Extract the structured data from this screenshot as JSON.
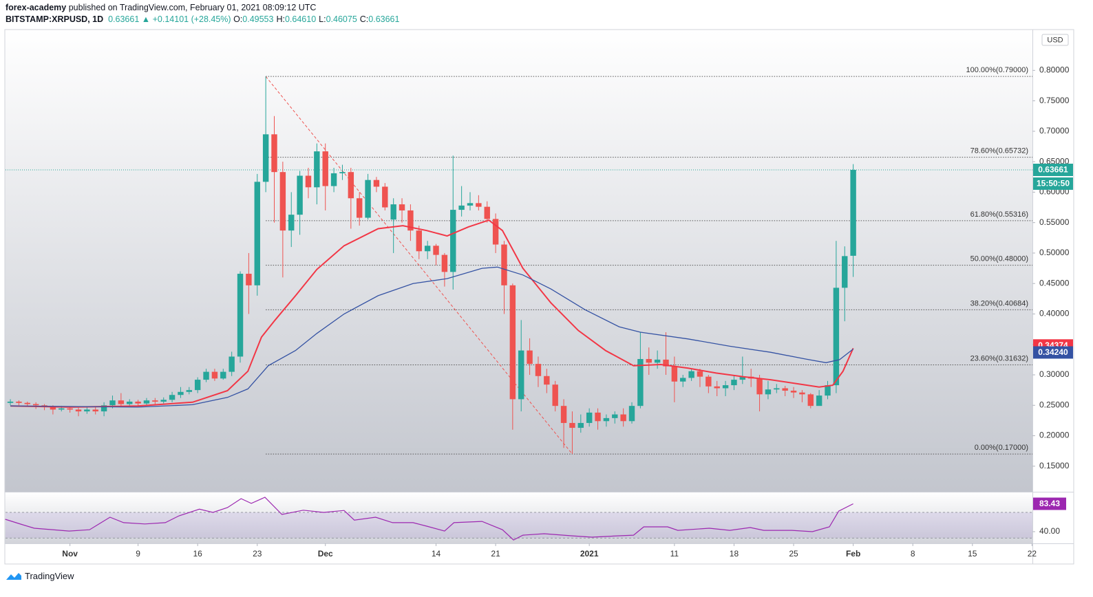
{
  "header": {
    "author": "forex-academy",
    "published": "published on TradingView.com, February 01, 2021 08:09:12 UTC",
    "symbol": "BITSTAMP:XRPUSD, 1D",
    "last": "0.63661",
    "change": "▲ +0.14101 (+28.45%)",
    "ohlc": [
      {
        "key": "O:",
        "value": "0.49553"
      },
      {
        "key": "H:",
        "value": "0.64610"
      },
      {
        "key": "L:",
        "value": "0.46075"
      },
      {
        "key": "C:",
        "value": "0.63661"
      }
    ]
  },
  "footer": {
    "brand": "TradingView"
  },
  "chart_data": [
    {
      "type": "candlestick",
      "currency": "USD",
      "grid": false,
      "up_color": "#26a69a",
      "down_color": "#ef5350",
      "xlim": [
        -0.57,
        120.05
      ],
      "ylim": [
        0.108,
        0.867
      ],
      "xticks": [
        {
          "value": 7,
          "label": "Nov"
        },
        {
          "value": 15,
          "label": "9"
        },
        {
          "value": 22,
          "label": "16"
        },
        {
          "value": 29,
          "label": "23"
        },
        {
          "value": 37,
          "label": "Dec"
        },
        {
          "value": 50,
          "label": "14"
        },
        {
          "value": 57,
          "label": "21"
        },
        {
          "value": 68,
          "label": "2021"
        },
        {
          "value": 78,
          "label": "11"
        },
        {
          "value": 85,
          "label": "18"
        },
        {
          "value": 92,
          "label": "25"
        },
        {
          "value": 99,
          "label": "Feb"
        },
        {
          "value": 106,
          "label": "8"
        },
        {
          "value": 113,
          "label": "15"
        },
        {
          "value": 120,
          "label": "22"
        }
      ],
      "yticks": [
        {
          "value": 0.15,
          "label": "0.15000"
        },
        {
          "value": 0.2,
          "label": "0.20000"
        },
        {
          "value": 0.25,
          "label": "0.25000"
        },
        {
          "value": 0.3,
          "label": "0.30000"
        },
        {
          "value": 0.35,
          "label": "0.35000"
        },
        {
          "value": 0.4,
          "label": "0.40000"
        },
        {
          "value": 0.45,
          "label": "0.45000"
        },
        {
          "value": 0.5,
          "label": "0.50000"
        },
        {
          "value": 0.55,
          "label": "0.55000"
        },
        {
          "value": 0.6,
          "label": "0.60000"
        },
        {
          "value": 0.65,
          "label": "0.65000"
        },
        {
          "value": 0.7,
          "label": "0.70000"
        },
        {
          "value": 0.75,
          "label": "0.75000"
        },
        {
          "value": 0.8,
          "label": "0.80000"
        }
      ],
      "open": [
        0.254,
        0.256,
        0.254,
        0.252,
        0.25,
        0.247,
        0.243,
        0.245,
        0.243,
        0.24,
        0.243,
        0.24,
        0.25,
        0.258,
        0.252,
        0.256,
        0.253,
        0.258,
        0.256,
        0.259,
        0.267,
        0.272,
        0.275,
        0.292,
        0.305,
        0.294,
        0.305,
        0.33,
        0.466,
        0.447,
        0.617,
        0.695,
        0.633,
        0.537,
        0.563,
        0.627,
        0.608,
        0.667,
        0.61,
        0.631,
        0.633,
        0.59,
        0.558,
        0.62,
        0.609,
        0.555,
        0.58,
        0.57,
        0.537,
        0.503,
        0.512,
        0.497,
        0.469,
        0.571,
        0.578,
        0.582,
        0.576,
        0.556,
        0.514,
        0.447,
        0.26,
        0.34,
        0.318,
        0.298,
        0.284,
        0.249,
        0.221,
        0.213,
        0.221,
        0.238,
        0.224,
        0.229,
        0.235,
        0.224,
        0.249,
        0.326,
        0.32,
        0.325,
        0.314,
        0.289,
        0.295,
        0.306,
        0.297,
        0.281,
        0.278,
        0.283,
        0.292,
        0.297,
        0.294,
        0.268,
        0.276,
        0.278,
        0.274,
        0.271,
        0.268,
        0.249,
        0.266,
        0.283,
        0.443,
        0.49553
      ],
      "high": [
        0.26,
        0.258,
        0.256,
        0.255,
        0.252,
        0.25,
        0.249,
        0.248,
        0.246,
        0.248,
        0.247,
        0.255,
        0.266,
        0.27,
        0.26,
        0.259,
        0.262,
        0.262,
        0.263,
        0.272,
        0.28,
        0.28,
        0.296,
        0.31,
        0.31,
        0.31,
        0.338,
        0.47,
        0.5,
        0.63,
        0.79,
        0.725,
        0.65,
        0.6,
        0.635,
        0.64,
        0.68,
        0.68,
        0.64,
        0.645,
        0.64,
        0.6,
        0.63,
        0.625,
        0.615,
        0.59,
        0.59,
        0.58,
        0.545,
        0.52,
        0.515,
        0.5,
        0.66,
        0.61,
        0.6,
        0.595,
        0.585,
        0.565,
        0.52,
        0.45,
        0.39,
        0.36,
        0.33,
        0.31,
        0.29,
        0.26,
        0.24,
        0.235,
        0.245,
        0.245,
        0.235,
        0.24,
        0.245,
        0.255,
        0.37,
        0.345,
        0.34,
        0.37,
        0.33,
        0.3,
        0.31,
        0.31,
        0.3,
        0.29,
        0.29,
        0.3,
        0.33,
        0.31,
        0.3,
        0.29,
        0.285,
        0.282,
        0.28,
        0.275,
        0.27,
        0.275,
        0.29,
        0.52,
        0.511,
        0.6461
      ],
      "low": [
        0.25,
        0.25,
        0.248,
        0.244,
        0.242,
        0.235,
        0.24,
        0.238,
        0.232,
        0.236,
        0.235,
        0.232,
        0.245,
        0.248,
        0.248,
        0.248,
        0.25,
        0.252,
        0.253,
        0.255,
        0.262,
        0.268,
        0.27,
        0.288,
        0.29,
        0.292,
        0.298,
        0.32,
        0.4,
        0.43,
        0.6,
        0.55,
        0.46,
        0.51,
        0.53,
        0.59,
        0.58,
        0.57,
        0.6,
        0.62,
        0.54,
        0.545,
        0.555,
        0.6,
        0.57,
        0.5,
        0.55,
        0.52,
        0.49,
        0.49,
        0.48,
        0.445,
        0.44,
        0.56,
        0.57,
        0.57,
        0.55,
        0.5,
        0.4,
        0.21,
        0.24,
        0.3,
        0.28,
        0.27,
        0.24,
        0.18,
        0.17,
        0.205,
        0.215,
        0.21,
        0.215,
        0.22,
        0.215,
        0.22,
        0.245,
        0.3,
        0.31,
        0.3,
        0.255,
        0.28,
        0.29,
        0.28,
        0.27,
        0.265,
        0.265,
        0.275,
        0.285,
        0.28,
        0.24,
        0.26,
        0.27,
        0.265,
        0.262,
        0.255,
        0.245,
        0.25,
        0.26,
        0.27,
        0.388,
        0.46075
      ],
      "close": [
        0.256,
        0.254,
        0.252,
        0.25,
        0.247,
        0.243,
        0.245,
        0.243,
        0.24,
        0.243,
        0.24,
        0.25,
        0.258,
        0.252,
        0.256,
        0.253,
        0.258,
        0.256,
        0.259,
        0.267,
        0.272,
        0.275,
        0.292,
        0.305,
        0.294,
        0.305,
        0.33,
        0.466,
        0.447,
        0.617,
        0.695,
        0.633,
        0.537,
        0.563,
        0.627,
        0.608,
        0.667,
        0.61,
        0.631,
        0.633,
        0.59,
        0.558,
        0.62,
        0.609,
        0.575,
        0.58,
        0.57,
        0.537,
        0.503,
        0.512,
        0.497,
        0.469,
        0.571,
        0.578,
        0.582,
        0.576,
        0.556,
        0.514,
        0.447,
        0.26,
        0.34,
        0.318,
        0.298,
        0.284,
        0.249,
        0.221,
        0.213,
        0.221,
        0.238,
        0.224,
        0.229,
        0.235,
        0.224,
        0.249,
        0.326,
        0.32,
        0.325,
        0.314,
        0.289,
        0.295,
        0.306,
        0.297,
        0.281,
        0.278,
        0.283,
        0.292,
        0.297,
        0.294,
        0.268,
        0.276,
        0.278,
        0.274,
        0.271,
        0.268,
        0.249,
        0.266,
        0.283,
        0.443,
        0.495,
        0.63661
      ],
      "countdown": "15:50:50",
      "series": [
        {
          "color": "#f23645",
          "badge": "0.34374",
          "x": [
            0,
            7,
            15,
            21.4,
            25.5,
            27.9,
            29.5,
            31.1,
            33.5,
            36,
            39.2,
            43.2,
            46.1,
            48.9,
            51.3,
            53.8,
            56.2,
            57.8,
            60.2,
            63.5,
            66.7,
            69.9,
            73.2,
            76.4,
            79.6,
            82.9,
            86.1,
            89.3,
            92.6,
            95,
            96.6,
            97.8,
            99
          ],
          "values": [
            0.249,
            0.247,
            0.249,
            0.255,
            0.274,
            0.306,
            0.362,
            0.39,
            0.43,
            0.473,
            0.512,
            0.54,
            0.545,
            0.537,
            0.528,
            0.543,
            0.554,
            0.537,
            0.475,
            0.418,
            0.373,
            0.34,
            0.315,
            0.317,
            0.311,
            0.303,
            0.297,
            0.292,
            0.285,
            0.28,
            0.283,
            0.306,
            0.34374
          ]
        },
        {
          "color": "#3452a3",
          "badge": "0.34240",
          "x": [
            0,
            7,
            15,
            21.4,
            25.5,
            27.9,
            30.3,
            33.5,
            36,
            39.2,
            43.2,
            47.3,
            51.3,
            55.4,
            57.2,
            60.2,
            63.5,
            67.5,
            71.5,
            74,
            79.6,
            84.5,
            89.3,
            93.4,
            95.8,
            97.4,
            99
          ],
          "values": [
            0.249,
            0.248,
            0.247,
            0.251,
            0.263,
            0.277,
            0.315,
            0.34,
            0.368,
            0.4,
            0.43,
            0.45,
            0.458,
            0.475,
            0.477,
            0.464,
            0.441,
            0.407,
            0.379,
            0.37,
            0.359,
            0.347,
            0.337,
            0.326,
            0.32,
            0.325,
            0.3424
          ]
        }
      ],
      "trendline": {
        "x": [
          30,
          66
        ],
        "values": [
          0.79,
          0.17
        ],
        "color": "#ef5350"
      },
      "fib": [
        {
          "value": 0.79,
          "label": "100.00%(0.79000)"
        },
        {
          "value": 0.65732,
          "label": "78.60%(0.65732)"
        },
        {
          "value": 0.55316,
          "label": "61.80%(0.55316)"
        },
        {
          "value": 0.48,
          "label": "50.00%(0.48000)"
        },
        {
          "value": 0.40684,
          "label": "38.20%(0.40684)"
        },
        {
          "value": 0.31632,
          "label": "23.60%(0.31632)"
        },
        {
          "value": 0.17,
          "label": "0.00%(0.17000)"
        }
      ]
    },
    {
      "type": "line",
      "color": "#9c27b0",
      "ylim": [
        21.8,
        100
      ],
      "band": [
        30,
        70
      ],
      "yticks": [
        {
          "value": 40,
          "label": "40.00"
        }
      ],
      "x": [
        -0.6,
        1.2,
        2.8,
        6.9,
        9.3,
        11.7,
        13.3,
        15.8,
        18.2,
        19.8,
        22.2,
        23.8,
        25.5,
        27.1,
        28.3,
        29.9,
        31.9,
        34.4,
        36.8,
        39.2,
        40.4,
        42.9,
        44.9,
        47.3,
        48.9,
        51,
        52.1,
        55.4,
        57.8,
        59.1,
        60.2,
        62.7,
        65.9,
        68.3,
        71.5,
        73.2,
        74.4,
        77.2,
        78.4,
        82.1,
        84.5,
        86.9,
        88.5,
        91.8,
        94.2,
        96.2,
        97.3,
        99
      ],
      "values": [
        59.3,
        51.8,
        45.4,
        41,
        43,
        62.5,
        54,
        52,
        54,
        64.6,
        75,
        70,
        77.5,
        91.4,
        84,
        93.6,
        66.8,
        73.4,
        70,
        73,
        58,
        62.5,
        54,
        54,
        48.6,
        41,
        54,
        56,
        43,
        27,
        34.6,
        36.8,
        33.6,
        31.4,
        33.6,
        34.6,
        47.5,
        47.5,
        42,
        45.4,
        42,
        46.4,
        42,
        42,
        40,
        47.5,
        72,
        83.43
      ]
    }
  ]
}
